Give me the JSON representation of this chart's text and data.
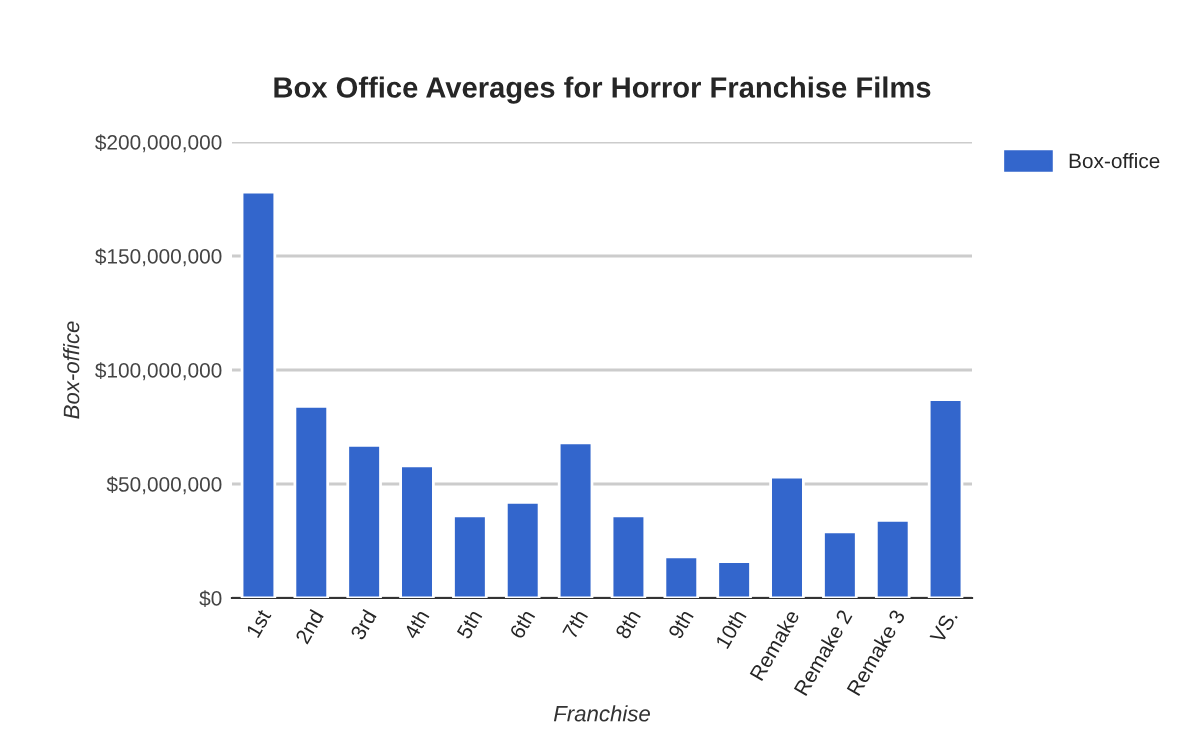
{
  "chart_data": {
    "type": "bar",
    "title": "Box Office Averages for Horror Franchise Films",
    "xlabel": "Franchise",
    "ylabel": "Box-office",
    "categories": [
      "1st",
      "2nd",
      "3rd",
      "4th",
      "5th",
      "6th",
      "7th",
      "8th",
      "9th",
      "10th",
      "Remake",
      "Remake 2",
      "Remake 3",
      "VS."
    ],
    "series": [
      {
        "name": "Box-office",
        "color": "#3366cc",
        "values": [
          178000000,
          84000000,
          67000000,
          58000000,
          36000000,
          42000000,
          68000000,
          36000000,
          18000000,
          16000000,
          53000000,
          29000000,
          34000000,
          87000000
        ]
      }
    ],
    "ylim": [
      0,
      200000000
    ],
    "yticks": [
      {
        "value": 0,
        "label": "$0"
      },
      {
        "value": 50000000,
        "label": "$50,000,000"
      },
      {
        "value": 100000000,
        "label": "$100,000,000"
      },
      {
        "value": 150000000,
        "label": "$150,000,000"
      },
      {
        "value": 200000000,
        "label": "$200,000,000"
      }
    ],
    "grid": "y",
    "legend": "top right"
  }
}
